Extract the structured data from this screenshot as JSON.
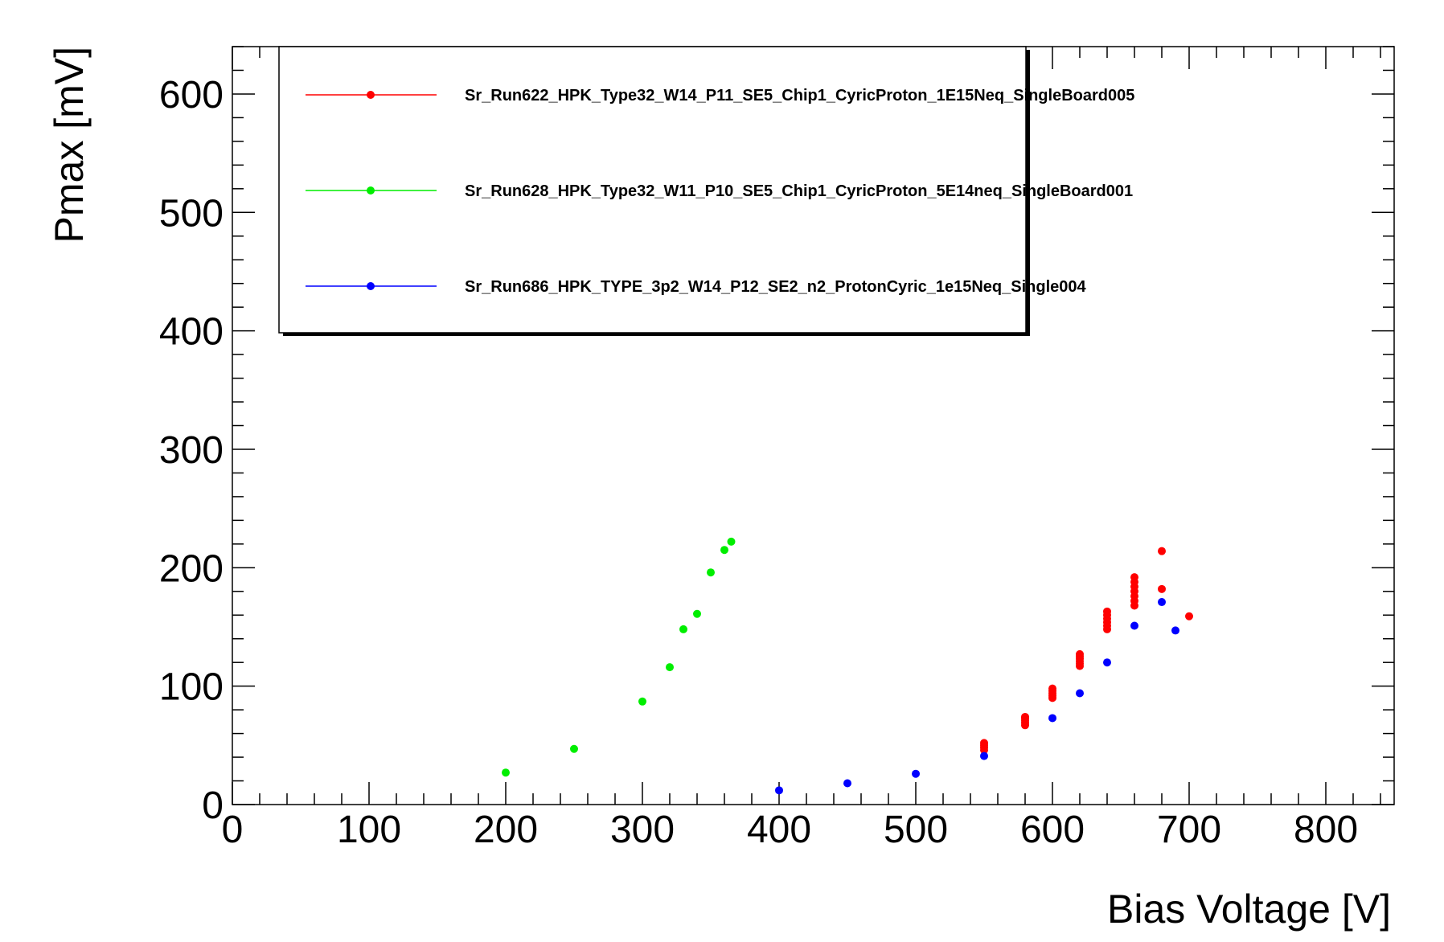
{
  "chart_data": {
    "type": "scatter",
    "xlabel": "Bias Voltage [V]",
    "ylabel": "Pmax [mV]",
    "xlim": [
      0,
      850
    ],
    "ylim": [
      0,
      640
    ],
    "x_ticks": [
      0,
      100,
      200,
      300,
      400,
      500,
      600,
      700,
      800
    ],
    "y_ticks": [
      0,
      100,
      200,
      300,
      400,
      500,
      600
    ],
    "grid": false,
    "legend_position": "top-left",
    "series": [
      {
        "name": "Sr_Run622_HPK_Type32_W14_P11_SE5_Chip1_CyricProton_1E15Neq_SingleBoard005",
        "color": "#ff0000",
        "points": [
          [
            550,
            46
          ],
          [
            550,
            48
          ],
          [
            550,
            50
          ],
          [
            550,
            52
          ],
          [
            580,
            67
          ],
          [
            580,
            69
          ],
          [
            580,
            71
          ],
          [
            580,
            73
          ],
          [
            580,
            74
          ],
          [
            600,
            90
          ],
          [
            600,
            92
          ],
          [
            600,
            94
          ],
          [
            600,
            96
          ],
          [
            600,
            98
          ],
          [
            620,
            117
          ],
          [
            620,
            119
          ],
          [
            620,
            121
          ],
          [
            620,
            123
          ],
          [
            620,
            125
          ],
          [
            620,
            127
          ],
          [
            640,
            148
          ],
          [
            640,
            151
          ],
          [
            640,
            154
          ],
          [
            640,
            157
          ],
          [
            640,
            160
          ],
          [
            640,
            163
          ],
          [
            660,
            168
          ],
          [
            660,
            172
          ],
          [
            660,
            176
          ],
          [
            660,
            180
          ],
          [
            660,
            184
          ],
          [
            660,
            188
          ],
          [
            660,
            192
          ],
          [
            680,
            182
          ],
          [
            680,
            214
          ],
          [
            700,
            159
          ]
        ]
      },
      {
        "name": "Sr_Run628_HPK_Type32_W11_P10_SE5_Chip1_CyricProton_5E14neq_SingleBoard001",
        "color": "#00ee00",
        "points": [
          [
            200,
            27
          ],
          [
            250,
            47
          ],
          [
            300,
            87
          ],
          [
            320,
            116
          ],
          [
            330,
            148
          ],
          [
            340,
            161
          ],
          [
            350,
            196
          ],
          [
            360,
            215
          ],
          [
            365,
            222
          ]
        ]
      },
      {
        "name": "Sr_Run686_HPK_TYPE_3p2_W14_P12_SE2_n2_ProtonCyric_1e15Neq_Single004",
        "color": "#0000ff",
        "points": [
          [
            400,
            12
          ],
          [
            450,
            18
          ],
          [
            500,
            26
          ],
          [
            550,
            41
          ],
          [
            600,
            73
          ],
          [
            620,
            94
          ],
          [
            640,
            120
          ],
          [
            660,
            151
          ],
          [
            680,
            171
          ],
          [
            690,
            147
          ]
        ]
      }
    ]
  }
}
